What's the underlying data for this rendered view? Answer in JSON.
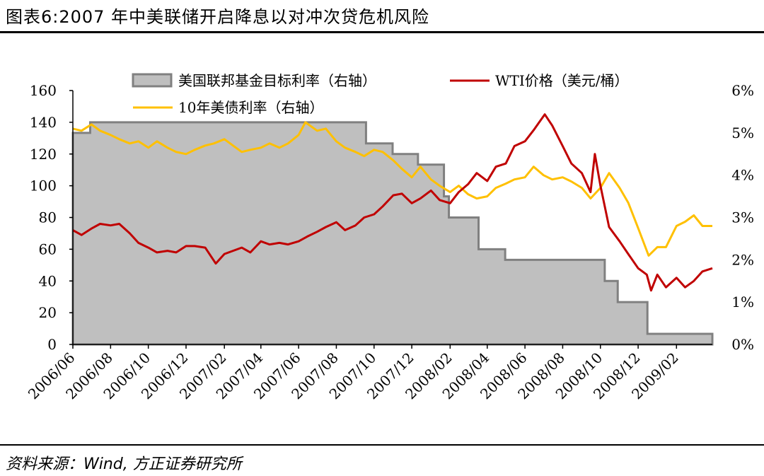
{
  "title": "图表6:2007 年中美联储开启降息以对冲次贷危机风险",
  "source": "资料来源：Wind, 方正证券研究所",
  "colors": {
    "ffr_fill": "#bfbfbf",
    "ffr_stroke": "#808080",
    "wti": "#c00000",
    "t10": "#ffc000"
  },
  "chart_data": {
    "type": "line",
    "x_axis": {
      "start": "2006-06-01",
      "end": "2009-03-31",
      "tick_labels": [
        "2006/06",
        "2006/08",
        "2006/10",
        "2006/12",
        "2007/02",
        "2007/04",
        "2007/06",
        "2007/08",
        "2007/10",
        "2007/12",
        "2008/02",
        "2008/04",
        "2008/06",
        "2008/08",
        "2008/10",
        "2008/12",
        "2009/02"
      ]
    },
    "y_left": {
      "min": 0,
      "max": 160,
      "ticks": [
        0,
        20,
        40,
        60,
        80,
        100,
        120,
        140,
        160
      ]
    },
    "y_right": {
      "min": 0,
      "max": 6,
      "tick_labels": [
        "0%",
        "1%",
        "2%",
        "3%",
        "4%",
        "5%",
        "6%"
      ]
    },
    "legend": [
      "美国联邦基金目标利率（右轴）",
      "WTI价格（美元/桶）",
      "10年美债利率（右轴）"
    ],
    "series": [
      {
        "name": "美国联邦基金目标利率（右轴）",
        "axis": "right",
        "kind": "area-step",
        "points": [
          [
            "2006-06-01",
            5.0
          ],
          [
            "2006-06-29",
            5.25
          ],
          [
            "2007-09-18",
            4.75
          ],
          [
            "2007-10-31",
            4.5
          ],
          [
            "2007-12-11",
            4.25
          ],
          [
            "2008-01-22",
            3.5
          ],
          [
            "2008-01-30",
            3.0
          ],
          [
            "2008-03-18",
            2.25
          ],
          [
            "2008-04-30",
            2.0
          ],
          [
            "2008-10-08",
            1.5
          ],
          [
            "2008-10-29",
            1.0
          ],
          [
            "2008-12-16",
            0.25
          ],
          [
            "2009-03-31",
            0.25
          ]
        ]
      },
      {
        "name": "WTI价格（美元/桶）",
        "axis": "left",
        "kind": "line",
        "points": [
          [
            "2006-06-01",
            72
          ],
          [
            "2006-06-15",
            69
          ],
          [
            "2006-07-01",
            73
          ],
          [
            "2006-07-15",
            76
          ],
          [
            "2006-08-01",
            75
          ],
          [
            "2006-08-15",
            76
          ],
          [
            "2006-09-01",
            70
          ],
          [
            "2006-09-15",
            64
          ],
          [
            "2006-10-01",
            61
          ],
          [
            "2006-10-15",
            58
          ],
          [
            "2006-11-01",
            59
          ],
          [
            "2006-11-15",
            58
          ],
          [
            "2006-12-01",
            62
          ],
          [
            "2006-12-15",
            62
          ],
          [
            "2007-01-01",
            61
          ],
          [
            "2007-01-18",
            51
          ],
          [
            "2007-02-01",
            57
          ],
          [
            "2007-02-15",
            59
          ],
          [
            "2007-03-01",
            61
          ],
          [
            "2007-03-15",
            58
          ],
          [
            "2007-04-01",
            65
          ],
          [
            "2007-04-15",
            63
          ],
          [
            "2007-05-01",
            64
          ],
          [
            "2007-05-15",
            63
          ],
          [
            "2007-06-01",
            65
          ],
          [
            "2007-06-15",
            68
          ],
          [
            "2007-07-01",
            71
          ],
          [
            "2007-07-15",
            74
          ],
          [
            "2007-08-01",
            77
          ],
          [
            "2007-08-15",
            72
          ],
          [
            "2007-09-01",
            75
          ],
          [
            "2007-09-15",
            80
          ],
          [
            "2007-10-01",
            82
          ],
          [
            "2007-10-15",
            87
          ],
          [
            "2007-11-01",
            94
          ],
          [
            "2007-11-15",
            95
          ],
          [
            "2007-12-01",
            89
          ],
          [
            "2007-12-15",
            92
          ],
          [
            "2008-01-01",
            97
          ],
          [
            "2008-01-15",
            91
          ],
          [
            "2008-02-01",
            89
          ],
          [
            "2008-02-15",
            96
          ],
          [
            "2008-03-01",
            101
          ],
          [
            "2008-03-15",
            108
          ],
          [
            "2008-04-01",
            103
          ],
          [
            "2008-04-15",
            112
          ],
          [
            "2008-05-01",
            114
          ],
          [
            "2008-05-15",
            125
          ],
          [
            "2008-06-01",
            128
          ],
          [
            "2008-06-15",
            135
          ],
          [
            "2008-07-03",
            145
          ],
          [
            "2008-07-15",
            138
          ],
          [
            "2008-08-01",
            125
          ],
          [
            "2008-08-15",
            114
          ],
          [
            "2008-09-01",
            108
          ],
          [
            "2008-09-15",
            96
          ],
          [
            "2008-09-22",
            120
          ],
          [
            "2008-10-01",
            100
          ],
          [
            "2008-10-15",
            74
          ],
          [
            "2008-11-01",
            65
          ],
          [
            "2008-11-15",
            57
          ],
          [
            "2008-12-01",
            48
          ],
          [
            "2008-12-15",
            44
          ],
          [
            "2008-12-22",
            34
          ],
          [
            "2009-01-01",
            44
          ],
          [
            "2009-01-15",
            36
          ],
          [
            "2009-02-01",
            42
          ],
          [
            "2009-02-15",
            36
          ],
          [
            "2009-03-01",
            40
          ],
          [
            "2009-03-15",
            46
          ],
          [
            "2009-03-31",
            48
          ]
        ]
      },
      {
        "name": "10年美债利率（右轴）",
        "axis": "right",
        "kind": "line",
        "points": [
          [
            "2006-06-01",
            5.1
          ],
          [
            "2006-06-15",
            5.05
          ],
          [
            "2006-07-01",
            5.2
          ],
          [
            "2006-07-15",
            5.05
          ],
          [
            "2006-08-01",
            4.95
          ],
          [
            "2006-08-15",
            4.85
          ],
          [
            "2006-09-01",
            4.75
          ],
          [
            "2006-09-15",
            4.8
          ],
          [
            "2006-10-01",
            4.65
          ],
          [
            "2006-10-15",
            4.8
          ],
          [
            "2006-11-01",
            4.65
          ],
          [
            "2006-11-15",
            4.55
          ],
          [
            "2006-12-01",
            4.5
          ],
          [
            "2006-12-15",
            4.6
          ],
          [
            "2007-01-01",
            4.7
          ],
          [
            "2007-01-15",
            4.75
          ],
          [
            "2007-02-01",
            4.85
          ],
          [
            "2007-02-15",
            4.7
          ],
          [
            "2007-03-01",
            4.55
          ],
          [
            "2007-03-15",
            4.6
          ],
          [
            "2007-04-01",
            4.65
          ],
          [
            "2007-04-15",
            4.75
          ],
          [
            "2007-05-01",
            4.65
          ],
          [
            "2007-05-15",
            4.75
          ],
          [
            "2007-06-01",
            4.95
          ],
          [
            "2007-06-12",
            5.25
          ],
          [
            "2007-07-01",
            5.05
          ],
          [
            "2007-07-15",
            5.1
          ],
          [
            "2007-08-01",
            4.8
          ],
          [
            "2007-08-15",
            4.65
          ],
          [
            "2007-09-01",
            4.55
          ],
          [
            "2007-09-15",
            4.45
          ],
          [
            "2007-10-01",
            4.6
          ],
          [
            "2007-10-15",
            4.55
          ],
          [
            "2007-11-01",
            4.35
          ],
          [
            "2007-11-15",
            4.15
          ],
          [
            "2007-12-01",
            3.95
          ],
          [
            "2007-12-15",
            4.2
          ],
          [
            "2008-01-01",
            3.9
          ],
          [
            "2008-01-15",
            3.75
          ],
          [
            "2008-02-01",
            3.6
          ],
          [
            "2008-02-15",
            3.75
          ],
          [
            "2008-03-01",
            3.55
          ],
          [
            "2008-03-15",
            3.45
          ],
          [
            "2008-04-01",
            3.5
          ],
          [
            "2008-04-15",
            3.7
          ],
          [
            "2008-05-01",
            3.8
          ],
          [
            "2008-05-15",
            3.9
          ],
          [
            "2008-06-01",
            3.95
          ],
          [
            "2008-06-15",
            4.2
          ],
          [
            "2008-07-01",
            4.0
          ],
          [
            "2008-07-15",
            3.9
          ],
          [
            "2008-08-01",
            3.95
          ],
          [
            "2008-08-15",
            3.85
          ],
          [
            "2008-09-01",
            3.7
          ],
          [
            "2008-09-15",
            3.45
          ],
          [
            "2008-10-01",
            3.7
          ],
          [
            "2008-10-15",
            4.05
          ],
          [
            "2008-11-01",
            3.7
          ],
          [
            "2008-11-15",
            3.35
          ],
          [
            "2008-12-01",
            2.75
          ],
          [
            "2008-12-18",
            2.1
          ],
          [
            "2009-01-01",
            2.3
          ],
          [
            "2009-01-15",
            2.3
          ],
          [
            "2009-02-01",
            2.8
          ],
          [
            "2009-02-15",
            2.9
          ],
          [
            "2009-03-01",
            3.05
          ],
          [
            "2009-03-15",
            2.8
          ],
          [
            "2009-03-31",
            2.8
          ]
        ]
      }
    ]
  }
}
